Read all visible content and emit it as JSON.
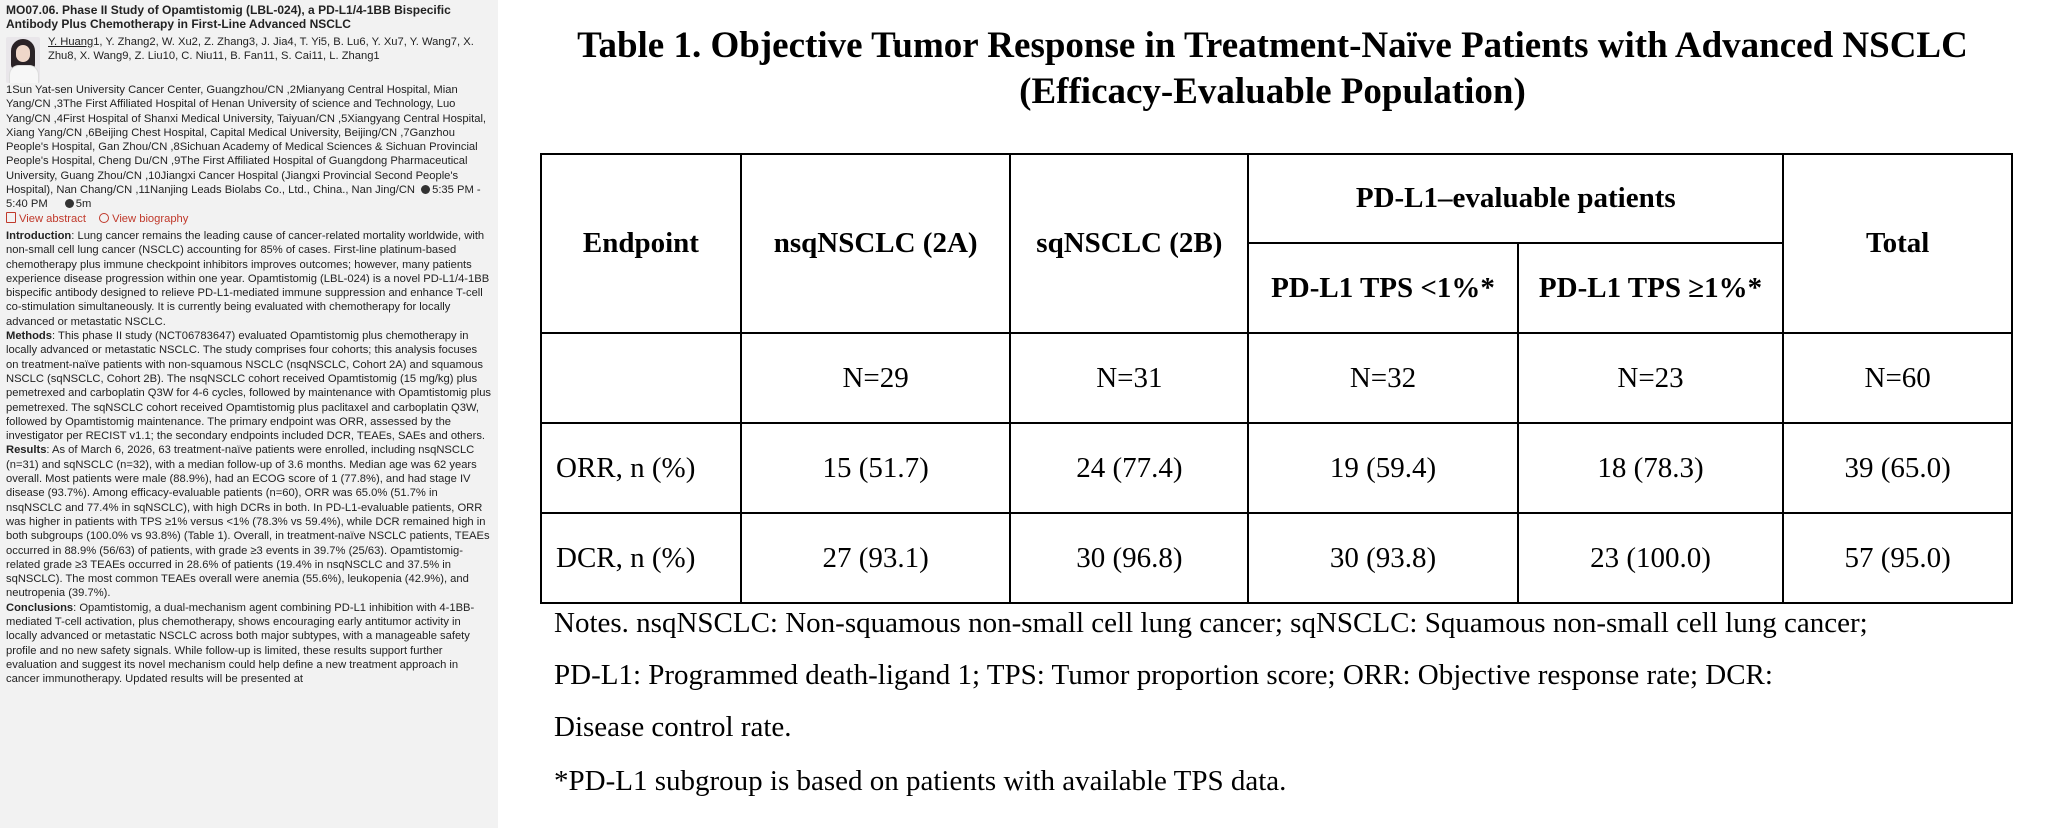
{
  "abstract": {
    "title": "MO07.06. Phase II Study of Opamtistomig (LBL-024), a PD-L1/4-1BB Bispecific Antibody Plus Chemotherapy in First-Line Advanced NSCLC",
    "presenter": "Y. Huang",
    "authors_rest": "1, Y. Zhang2, W. Xu2, Z. Zhang3, J. Jia4, T. Yi5, B. Lu6, Y. Xu7, Y. Wang7, X. Zhu8, X. Wang9, Z. Liu10, C. Niu11, B. Fan11, S. Cai11, L. Zhang1",
    "affiliations": "1Sun Yat-sen University Cancer Center, Guangzhou/CN ,2Mianyang Central Hospital, Mian Yang/CN ,3The First Affiliated Hospital of Henan University of science and Technology, Luo Yang/CN ,4First Hospital of Shanxi Medical University, Taiyuan/CN ,5Xiangyang Central Hospital, Xiang Yang/CN ,6Beijing Chest Hospital, Capital Medical University, Beijing/CN ,7Ganzhou People's Hospital, Gan Zhou/CN ,8Sichuan Academy of Medical Sciences & Sichuan Provincial People's Hospital, Cheng Du/CN ,9The First Affiliated Hospital of Guangdong Pharmaceutical University, Guang Zhou/CN ,10Jiangxi Cancer Hospital (Jiangxi Provincial Second People's Hospital), Nan Chang/CN ,11Nanjing Leads Biolabs Co., Ltd., China., Nan Jing/CN",
    "time": "5:35 PM - 5:40 PM",
    "duration": "5m",
    "view_abstract": "View abstract",
    "view_biography": "View biography",
    "sections": [
      {
        "label": "Introduction",
        "text": ": Lung cancer remains the leading cause of cancer-related mortality worldwide, with non-small cell lung cancer (NSCLC) accounting for 85% of cases. First-line platinum-based chemotherapy plus immune checkpoint inhibitors improves outcomes; however, many patients experience disease progression within one year. Opamtistomig (LBL-024) is a novel PD-L1/4-1BB bispecific antibody designed to relieve PD-L1-mediated immune suppression and enhance T-cell co-stimulation simultaneously. It is currently being evaluated with chemotherapy for locally advanced or metastatic NSCLC."
      },
      {
        "label": "Methods",
        "text": ": This phase II study (NCT06783647) evaluated Opamtistomig plus chemotherapy in locally advanced or metastatic NSCLC. The study comprises four cohorts; this analysis focuses on treatment-naïve patients with non-squamous NSCLC (nsqNSCLC, Cohort 2A) and squamous NSCLC (sqNSCLC, Cohort 2B). The nsqNSCLC cohort received Opamtistomig (15 mg/kg) plus pemetrexed and carboplatin Q3W for 4-6 cycles, followed by maintenance with Opamtistomig plus pemetrexed. The sqNSCLC cohort received Opamtistomig plus paclitaxel and carboplatin Q3W, followed by Opamtistomig maintenance. The primary endpoint was ORR, assessed by the investigator per RECIST v1.1; the secondary endpoints included DCR, TEAEs, SAEs and others."
      },
      {
        "label": "Results",
        "text": ": As of March 6, 2026, 63 treatment-naïve patients were enrolled, including nsqNSCLC (n=31) and sqNSCLC (n=32), with a median follow-up of 3.6 months. Median age was 62 years overall. Most patients were male (88.9%), had an ECOG score of 1 (77.8%), and had stage IV disease (93.7%). Among efficacy-evaluable patients (n=60), ORR was 65.0% (51.7% in nsqNSCLC and 77.4% in sqNSCLC), with high DCRs in both. In PD-L1-evaluable patients, ORR was higher in patients with TPS ≥1% versus <1% (78.3% vs 59.4%), while DCR remained high in both subgroups (100.0% vs 93.8%) (Table 1). Overall, in treatment-naïve NSCLC patients, TEAEs occurred in 88.9% (56/63) of patients, with grade ≥3 events in 39.7% (25/63). Opamtistomig-related grade ≥3 TEAEs occurred in 28.6% of patients (19.4% in nsqNSCLC and 37.5% in sqNSCLC). The most common TEAEs overall were anemia (55.6%), leukopenia (42.9%), and neutropenia (39.7%)."
      },
      {
        "label": "Conclusions",
        "text": ": Opamtistomig, a dual-mechanism agent combining PD-L1 inhibition with 4-1BB-mediated T-cell activation, plus chemotherapy, shows encouraging early antitumor activity in locally advanced or metastatic NSCLC across both major subtypes, with a manageable safety profile and no new safety signals. While follow-up is limited, these results support further evaluation and suggest its novel mechanism could help define a new treatment approach in cancer immunotherapy. Updated results will be presented at"
      }
    ]
  },
  "table": {
    "title_line1": "Table 1. Objective Tumor Response in Treatment-Naïve Patients with Advanced NSCLC",
    "title_line2": "(Efficacy-Evaluable Population)",
    "headers": {
      "endpoint": "Endpoint",
      "nsq": "nsqNSCLC (2A)",
      "sq": "sqNSCLC (2B)",
      "pdl1_group": "PD-L1–evaluable patients",
      "tps_lt1": "PD-L1 TPS <1%*",
      "tps_ge1": "PD-L1 TPS ≥1%*",
      "total": "Total"
    },
    "n_row": [
      "",
      "N=29",
      "N=31",
      "N=32",
      "N=23",
      "N=60"
    ],
    "rows": [
      [
        "ORR, n (%)",
        "15 (51.7)",
        "24 (77.4)",
        "19 (59.4)",
        "18 (78.3)",
        "39 (65.0)"
      ],
      [
        "DCR, n (%)",
        "27 (93.1)",
        "30 (96.8)",
        "30 (93.8)",
        "23 (100.0)",
        "57 (95.0)"
      ]
    ],
    "notes": [
      "Notes. nsqNSCLC: Non-squamous non-small cell lung cancer; sqNSCLC: Squamous non-small cell lung cancer;",
      "PD-L1: Programmed death-ligand 1; TPS: Tumor proportion score; ORR: Objective response rate; DCR:",
      "Disease control rate.",
      "*PD-L1 subgroup is based on patients with available TPS data."
    ]
  }
}
